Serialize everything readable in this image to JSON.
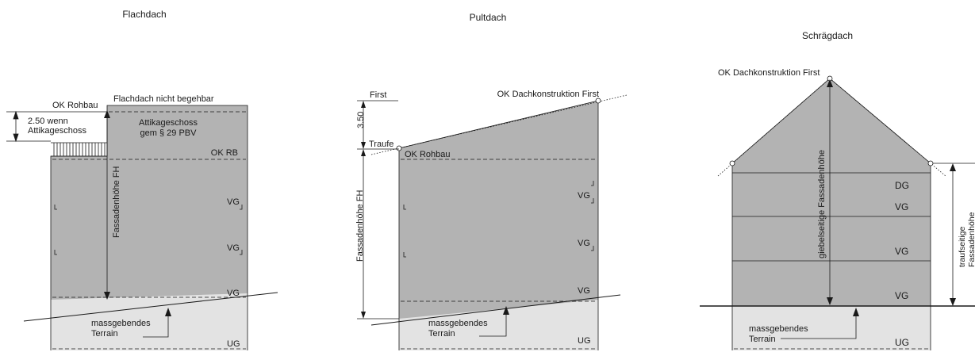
{
  "colors": {
    "building_fill": "#b3b3b3",
    "ground_fill": "#e3e3e3",
    "line": "#1a1a1a",
    "background": "#ffffff"
  },
  "flachdach": {
    "title": "Flachdach",
    "ok_rohbau": "OK Rohbau",
    "nicht_begehbar": "Flachdach nicht begehbar",
    "dim_value": "2.50 wenn",
    "dim_note": "Attikageschoss",
    "attika_line1": "Attikageschoss",
    "attika_line2": "gem § 29 PBV",
    "ok_rb": "OK RB",
    "fh_label": "Fassadenhöhe FH",
    "floors": [
      "VG",
      "VG",
      "VG"
    ],
    "ug": "UG",
    "terrain_line1": "massgebendes",
    "terrain_line2": "Terrain"
  },
  "pultdach": {
    "title": "Pultdach",
    "first": "First",
    "ok_first": "OK Dachkonstruktion First",
    "dim_value": "3.50",
    "traufe": "Traufe",
    "ok_rohbau": "OK Rohbau",
    "fh_label": "Fassadenhöhe FH",
    "floors": [
      "VG",
      "VG",
      "VG"
    ],
    "ug": "UG",
    "terrain_line1": "massgebendes",
    "terrain_line2": "Terrain"
  },
  "schraegdach": {
    "title": "Schrägdach",
    "ok_first": "OK Dachkonstruktion First",
    "giebel_label": "giebelseitige Fassadenhöhe",
    "trauf_line1": "traufseitige",
    "trauf_line2": "Fassadenhöhe",
    "floors": [
      "DG",
      "VG",
      "VG",
      "VG"
    ],
    "ug": "UG",
    "terrain_line1": "massgebendes",
    "terrain_line2": "Terrain"
  }
}
